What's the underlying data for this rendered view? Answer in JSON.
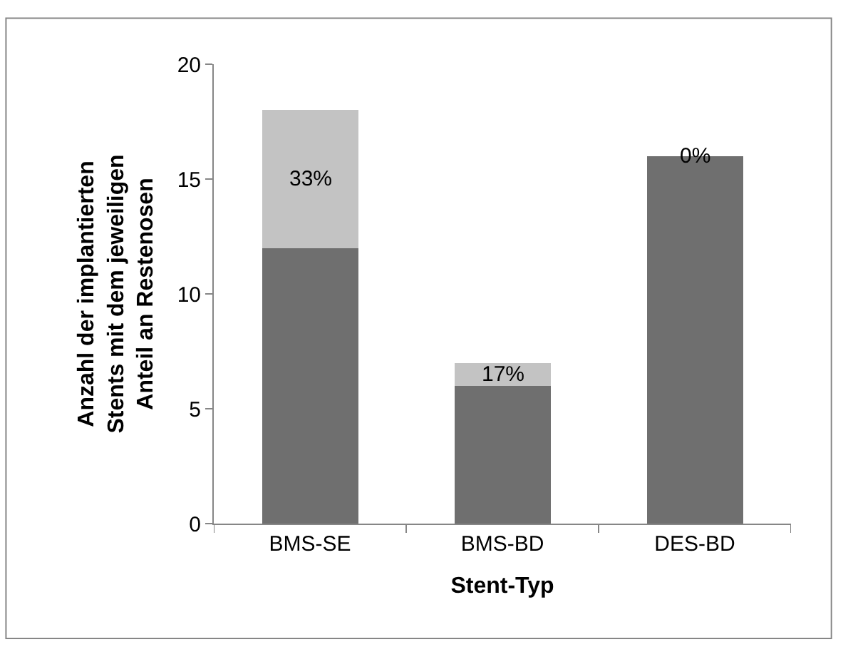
{
  "chart_data": {
    "type": "bar",
    "stacked": true,
    "xlabel": "Stent-Typ",
    "ylabel": "Anzahl der implantierten\nStents mit dem jeweiligen\nAnteil an Restenosen",
    "categories": [
      "BMS-SE",
      "BMS-BD",
      "DES-BD"
    ],
    "series": [
      {
        "color": "#6f6f6f",
        "values": [
          12,
          6,
          16
        ]
      },
      {
        "color": "#c3c3c3",
        "values": [
          6,
          1,
          0
        ]
      }
    ],
    "annotations": [
      {
        "text": "33%",
        "x": "BMS-SE",
        "y": 18
      },
      {
        "text": "17%",
        "x": "BMS-BD",
        "y": 7
      },
      {
        "text": "0%",
        "x": "DES-BD",
        "y": 16
      }
    ],
    "ylim": [
      0,
      20
    ],
    "yticks": [
      0,
      5,
      10,
      15,
      20
    ]
  }
}
